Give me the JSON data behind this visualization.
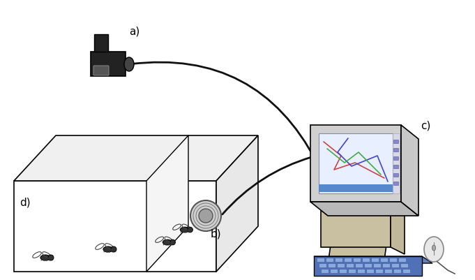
{
  "fig_width": 6.81,
  "fig_height": 4.02,
  "dpi": 100,
  "bg_color": "#ffffff",
  "label_a": "a)",
  "label_b": "b)",
  "label_c": "c)",
  "label_d": "d)",
  "label_fontsize": 11,
  "box_color": "#ffffff",
  "box_edge": "#000000",
  "computer_body_color": "#c8c0a0",
  "computer_monitor_color": "#d0d0d0",
  "keyboard_color": "#6080c0",
  "screen_color": "#e8f0ff"
}
